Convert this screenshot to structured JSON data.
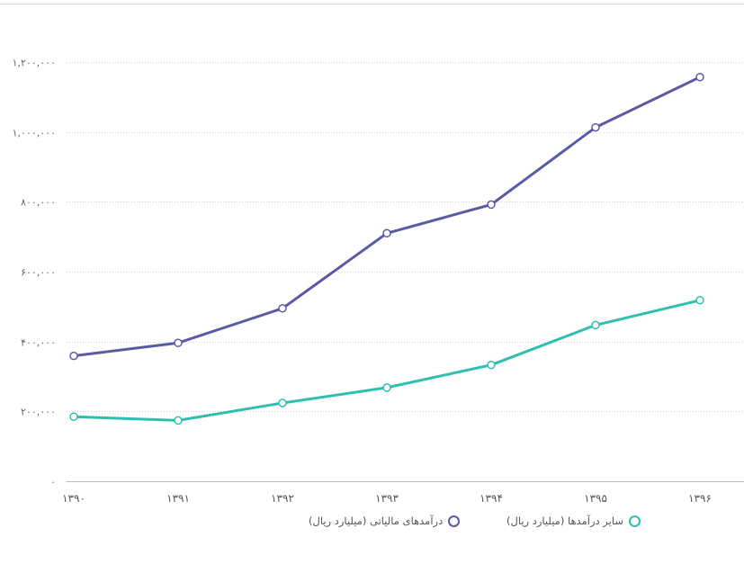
{
  "chart_data": {
    "type": "line",
    "x": [
      "۱۳۹۰",
      "۱۳۹۱",
      "۱۳۹۲",
      "۱۳۹۳",
      "۱۳۹۴",
      "۱۳۹۵",
      "۱۳۹۶"
    ],
    "ylim": [
      0,
      1200000
    ],
    "yticks": [
      0,
      200000,
      400000,
      600000,
      800000,
      1000000,
      1200000
    ],
    "ytick_labels": [
      "۰",
      "۲۰۰,۰۰۰",
      "۴۰۰,۰۰۰",
      "۶۰۰,۰۰۰",
      "۸۰۰,۰۰۰",
      "۱,۰۰۰,۰۰۰",
      "۱,۲۰۰,۰۰۰"
    ],
    "grid": true,
    "legend_position": "bottom",
    "series": [
      {
        "name": "درآمدهای مالیاتی (میلیارد ریال)",
        "color": "#5b5ba3",
        "values": [
          359000,
          396000,
          495000,
          710000,
          792000,
          1013000,
          1157000
        ]
      },
      {
        "name": "سایر درآمدها (میلیارد ریال)",
        "color": "#2fbfb0",
        "values": [
          185000,
          174000,
          224000,
          268000,
          333000,
          447000,
          518000
        ]
      }
    ]
  }
}
